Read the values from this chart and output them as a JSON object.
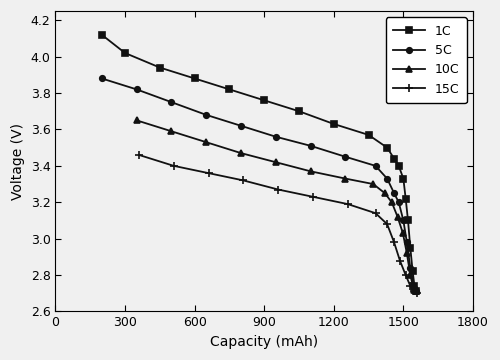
{
  "title": "",
  "xlabel": "Capacity (mAh)",
  "ylabel": "Voltage (V)",
  "xlim": [
    0,
    1800
  ],
  "ylim": [
    2.6,
    4.25
  ],
  "xticks": [
    0,
    300,
    600,
    900,
    1200,
    1500,
    1800
  ],
  "yticks": [
    2.6,
    2.8,
    3.0,
    3.2,
    3.4,
    3.6,
    3.8,
    4.0,
    4.2
  ],
  "series": [
    {
      "label": "1C",
      "marker": "s",
      "color": "#111111",
      "linewidth": 1.3,
      "markersize": 4,
      "x": [
        200,
        300,
        450,
        600,
        750,
        900,
        1050,
        1200,
        1350,
        1430,
        1460,
        1480,
        1500,
        1510,
        1520,
        1530,
        1540,
        1548,
        1555
      ],
      "y": [
        4.12,
        4.02,
        3.94,
        3.88,
        3.82,
        3.76,
        3.7,
        3.63,
        3.57,
        3.5,
        3.44,
        3.4,
        3.33,
        3.22,
        3.1,
        2.95,
        2.82,
        2.74,
        2.71
      ]
    },
    {
      "label": "5C",
      "marker": "o",
      "color": "#111111",
      "linewidth": 1.3,
      "markersize": 4,
      "x": [
        200,
        350,
        500,
        650,
        800,
        950,
        1100,
        1250,
        1380,
        1430,
        1460,
        1480,
        1500,
        1515,
        1530,
        1545,
        1555
      ],
      "y": [
        3.88,
        3.82,
        3.75,
        3.68,
        3.62,
        3.56,
        3.51,
        3.45,
        3.4,
        3.33,
        3.25,
        3.2,
        3.1,
        2.98,
        2.84,
        2.73,
        2.71
      ]
    },
    {
      "label": "10C",
      "marker": "^",
      "color": "#111111",
      "linewidth": 1.3,
      "markersize": 4,
      "x": [
        350,
        500,
        650,
        800,
        950,
        1100,
        1250,
        1370,
        1420,
        1450,
        1475,
        1498,
        1515,
        1530,
        1545,
        1555
      ],
      "y": [
        3.65,
        3.59,
        3.53,
        3.47,
        3.42,
        3.37,
        3.33,
        3.3,
        3.25,
        3.2,
        3.12,
        3.03,
        2.92,
        2.8,
        2.72,
        2.71
      ]
    },
    {
      "label": "15C",
      "marker": "+",
      "color": "#111111",
      "linewidth": 1.3,
      "markersize": 6,
      "x": [
        360,
        510,
        660,
        810,
        960,
        1110,
        1260,
        1380,
        1430,
        1460,
        1485,
        1510,
        1530,
        1548,
        1558
      ],
      "y": [
        3.46,
        3.4,
        3.36,
        3.32,
        3.27,
        3.23,
        3.19,
        3.14,
        3.08,
        2.98,
        2.88,
        2.8,
        2.74,
        2.71,
        2.7
      ]
    }
  ],
  "background_color": "#f0f0f0",
  "legend_loc": "upper right",
  "legend_fontsize": 9,
  "fig_width": 5.0,
  "fig_height": 3.6,
  "dpi": 100
}
